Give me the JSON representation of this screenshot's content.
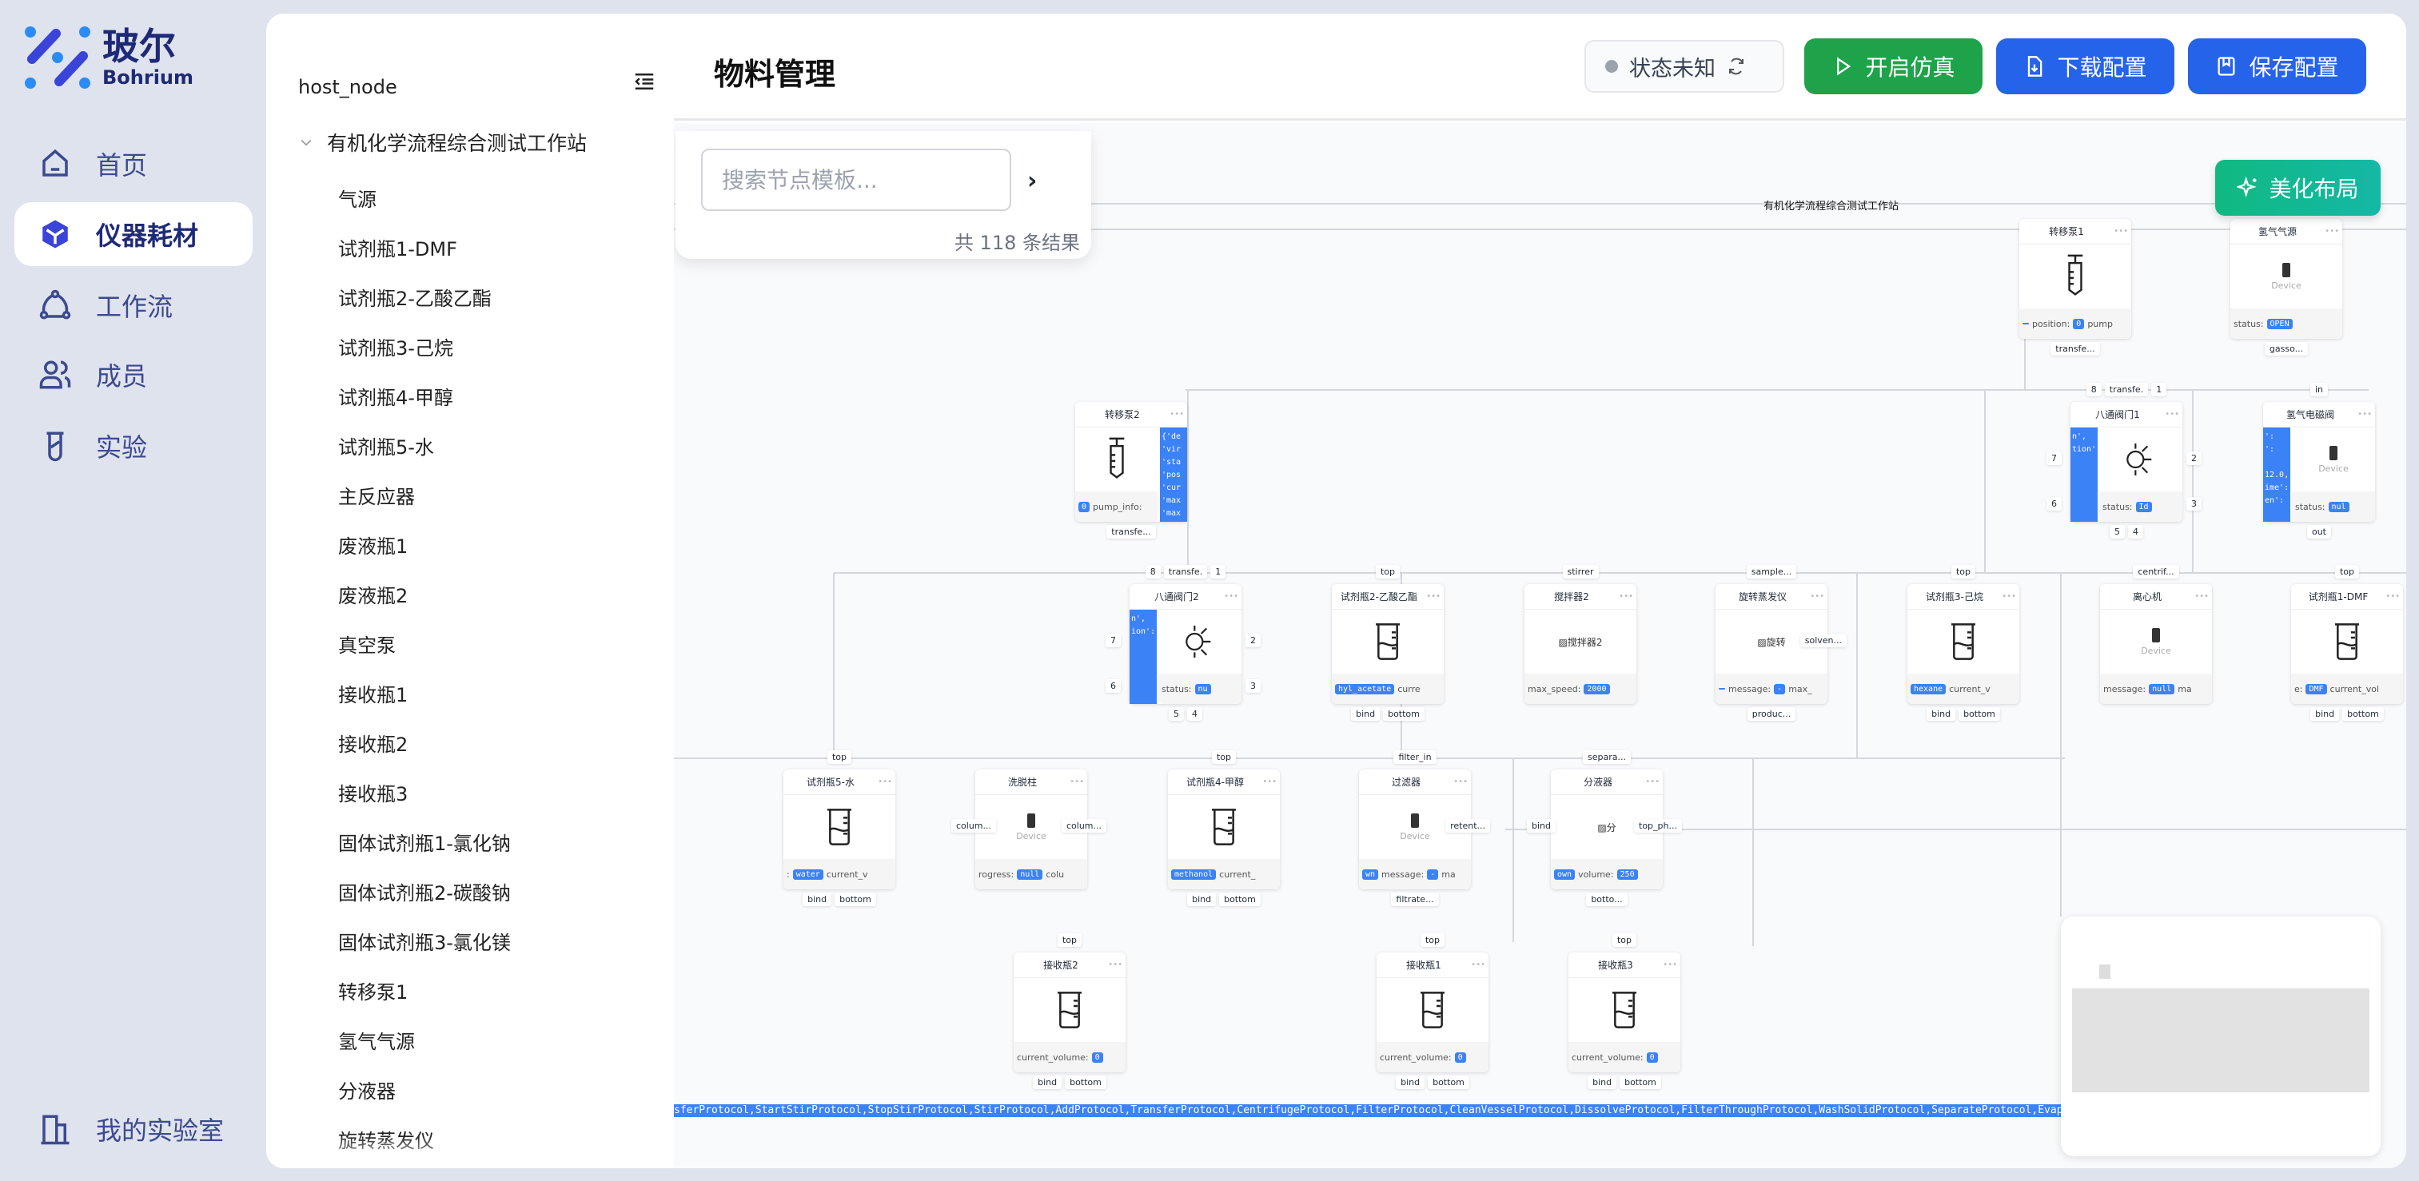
{
  "brand": {
    "name_cn": "玻尔",
    "name_en": "Bohrium"
  },
  "nav": {
    "items": [
      {
        "label": "首页",
        "icon": "home-icon"
      },
      {
        "label": "仪器耗材",
        "icon": "cube-icon",
        "active": true
      },
      {
        "label": "工作流",
        "icon": "workflow-icon"
      },
      {
        "label": "成员",
        "icon": "users-icon"
      },
      {
        "label": "实验",
        "icon": "test-tube-icon"
      }
    ],
    "footer": {
      "label": "我的实验室",
      "icon": "building-icon"
    }
  },
  "tree": {
    "root": "host_node",
    "group": "有机化学流程综合测试工作站",
    "items": [
      "气源",
      "试剂瓶1-DMF",
      "试剂瓶2-乙酸乙酯",
      "试剂瓶3-己烷",
      "试剂瓶4-甲醇",
      "试剂瓶5-水",
      "主反应器",
      "废液瓶1",
      "废液瓶2",
      "真空泵",
      "接收瓶1",
      "接收瓶2",
      "接收瓶3",
      "固体试剂瓶1-氯化钠",
      "固体试剂瓶2-碳酸钠",
      "固体试剂瓶3-氯化镁",
      "转移泵1",
      "氢气气源",
      "分液器",
      "旋转蒸发仪"
    ]
  },
  "header": {
    "title": "物料管理",
    "status": "状态未知",
    "start_sim": "开启仿真",
    "download": "下载配置",
    "save": "保存配置"
  },
  "colors": {
    "green": "#1ea34a",
    "blue": "#2563eb",
    "teal": "#10b981",
    "pill": "#3b82f6"
  },
  "search": {
    "placeholder": "搜索节点模板...",
    "count": "共 118 条结果"
  },
  "canvas": {
    "beautify": "美化布局",
    "group_title": "有机化学流程综合测试工作站",
    "protocol_bar": "sferProtocol,StartStirProtocol,StopStirProtocol,StirProtocol,AddProtocol,TransferProtocol,CentrifugeProtocol,FilterProtocol,CleanVesselProtocol,DissolveProtocol,FilterThroughProtocol,WashSolidProtocol,SeparateProtocol,EvaporateProtocol,HeatChillProtocol,AdjustPHProtocol,ResetHandlingProtocol,RecrystallizeProtocol,AndR"
  },
  "nodes": [
    {
      "title": "转移泵1",
      "icon": "syringe",
      "field": [
        {
          "p": 1,
          "v": " "
        },
        {
          "v": "position:"
        },
        {
          "p": 1,
          "v": "0"
        },
        {
          "v": "pump"
        }
      ],
      "bottom": [
        "transfe..."
      ]
    },
    {
      "title": "氢气气源",
      "icon": "device",
      "device": "Device",
      "field": [
        {
          "v": "status:"
        },
        {
          "p": 1,
          "v": "OPEN"
        }
      ],
      "bottom": [
        "gasso..."
      ]
    },
    {
      "title": "转移泵2",
      "icon": "syringe",
      "field": [
        {
          "p": 1,
          "v": "0"
        },
        {
          "v": "pump_info:"
        }
      ],
      "bottom": [
        "transfe..."
      ],
      "code_right": "{'de\n'vir\n'sta\n'pos\n'cur\n'max\n'max"
    },
    {
      "title": "八通阀门1",
      "icon": "sun",
      "field": [
        {
          "v": "status:"
        },
        {
          "p": 1,
          "v": "Id"
        }
      ],
      "top": [
        "8",
        "transfe.",
        "1"
      ],
      "bottom": [
        "5",
        "4"
      ],
      "left": [
        "7",
        "6"
      ],
      "right": [
        "2",
        "3"
      ],
      "code_left": "n',\ntion':"
    },
    {
      "title": "氢气电磁阀",
      "icon": "device",
      "device": "Device",
      "field": [
        {
          "v": "status:"
        },
        {
          "p": 1,
          "v": "nul"
        }
      ],
      "top": [
        "in"
      ],
      "bottom": [
        "out"
      ],
      "code_left": "':\n':\n\n12.0,\nime':\nen':"
    },
    {
      "title": "八通阀门2",
      "icon": "sun",
      "field": [
        {
          "v": "status:"
        },
        {
          "p": 1,
          "v": "nu"
        }
      ],
      "top": [
        "8",
        "transfe.",
        "1"
      ],
      "bottom": [
        "5",
        "4"
      ],
      "left": [
        "7",
        "6"
      ],
      "right": [
        "2",
        "3"
      ],
      "code_left": "n',\nion':"
    },
    {
      "title": "试剂瓶2-乙酸乙酯",
      "icon": "beaker",
      "field": [
        {
          "p": 1,
          "v": "hyl_acetate"
        },
        {
          "v": "curre"
        }
      ],
      "top": [
        "top"
      ],
      "bottom": [
        "bind",
        "bottom"
      ]
    },
    {
      "title": "搅拌器2",
      "icon": "broken",
      "alt": "搅拌器2",
      "field": [
        {
          "v": "max_speed:"
        },
        {
          "p": 1,
          "v": "2000"
        }
      ],
      "top": [
        "stirrer"
      ]
    },
    {
      "title": "旋转蒸发仪",
      "icon": "broken",
      "alt": "旋转",
      "field": [
        {
          "p": 1,
          "v": " "
        },
        {
          "v": "message:"
        },
        {
          "p": 1,
          "v": "-"
        },
        {
          "v": "max_"
        }
      ],
      "top": [
        "sample..."
      ],
      "bottom": [
        "produc..."
      ],
      "right": [
        "solven..."
      ]
    },
    {
      "title": "试剂瓶3-己烷",
      "icon": "beaker",
      "field": [
        {
          "p": 1,
          "v": "hexane"
        },
        {
          "v": "current_v"
        }
      ],
      "top": [
        "top"
      ],
      "bottom": [
        "bind",
        "bottom"
      ]
    },
    {
      "title": "离心机",
      "icon": "device",
      "device": "Device",
      "field": [
        {
          "v": "message:"
        },
        {
          "p": 1,
          "v": "null"
        },
        {
          "v": "ma"
        }
      ],
      "top": [
        "centrif..."
      ]
    },
    {
      "title": "试剂瓶1-DMF",
      "icon": "beaker",
      "field": [
        {
          "v": "e:"
        },
        {
          "p": 1,
          "v": "DMF"
        },
        {
          "v": "current_vol"
        }
      ],
      "top": [
        "top"
      ],
      "bottom": [
        "bind",
        "bottom"
      ]
    },
    {
      "title": "试剂瓶5-水",
      "icon": "beaker",
      "field": [
        {
          "v": ":"
        },
        {
          "p": 1,
          "v": "water"
        },
        {
          "v": "current_v"
        }
      ],
      "top": [
        "top"
      ],
      "bottom": [
        "bind",
        "bottom"
      ]
    },
    {
      "title": "洗脱柱",
      "icon": "device",
      "device": "Device",
      "field": [
        {
          "v": "rogress:"
        },
        {
          "p": 1,
          "v": "null"
        },
        {
          "v": "colu"
        }
      ],
      "left": [
        "colum..."
      ],
      "right": [
        "colum..."
      ]
    },
    {
      "title": "试剂瓶4-甲醇",
      "icon": "beaker",
      "field": [
        {
          "p": 1,
          "v": "methanol"
        },
        {
          "v": "current_"
        }
      ],
      "top": [
        "top"
      ],
      "bottom": [
        "bind",
        "bottom"
      ]
    },
    {
      "title": "过滤器",
      "icon": "device",
      "device": "Device",
      "field": [
        {
          "p": 1,
          "v": "wn"
        },
        {
          "v": "message:"
        },
        {
          "p": 1,
          "v": "-"
        },
        {
          "v": "ma"
        }
      ],
      "top": [
        "filter_in"
      ],
      "bottom": [
        "filtrate..."
      ],
      "right": [
        "retent..."
      ]
    },
    {
      "title": "分液器",
      "icon": "broken",
      "alt": "分",
      "field": [
        {
          "p": 1,
          "v": "own"
        },
        {
          "v": "volume:"
        },
        {
          "p": 1,
          "v": "250"
        }
      ],
      "top": [
        "separa..."
      ],
      "bottom": [
        "botto..."
      ],
      "left": [
        "bind"
      ],
      "right": [
        "top_ph..."
      ]
    },
    {
      "title": "接收瓶2",
      "icon": "beaker",
      "field": [
        {
          "v": "current_volume:"
        },
        {
          "p": 1,
          "v": "0"
        }
      ],
      "top": [
        "top"
      ],
      "bottom": [
        "bind",
        "bottom"
      ]
    },
    {
      "title": "接收瓶1",
      "icon": "beaker",
      "field": [
        {
          "v": "current_volume:"
        },
        {
          "p": 1,
          "v": "0"
        }
      ],
      "top": [
        "top"
      ],
      "bottom": [
        "bind",
        "bottom"
      ]
    },
    {
      "title": "接收瓶3",
      "icon": "beaker",
      "field": [
        {
          "v": "current_volume:"
        },
        {
          "p": 1,
          "v": "0"
        }
      ],
      "top": [
        "top"
      ],
      "bottom": [
        "bind",
        "bottom"
      ]
    }
  ]
}
